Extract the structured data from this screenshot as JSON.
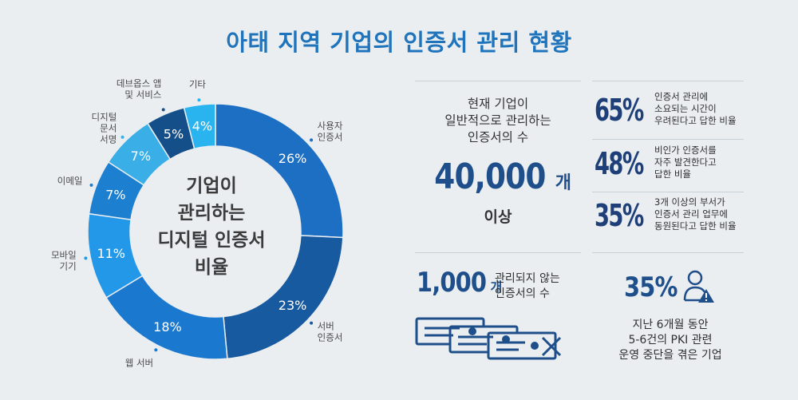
{
  "title": "아태 지역 기업의 인증서 관리 현황",
  "chart_data": {
    "type": "pie",
    "categories": [
      "사용자 인증서",
      "서버 인증서",
      "웹 서버",
      "모바일 기기",
      "이메일",
      "디지털 문서 서명",
      "데브옵스 앱 및 서비스",
      "기타"
    ],
    "values": [
      26,
      23,
      18,
      11,
      7,
      7,
      5,
      4
    ],
    "labels": [
      "26%",
      "23%",
      "18%",
      "11%",
      "7%",
      "7%",
      "5%",
      "4%"
    ],
    "title_lines": [
      "기업이",
      "관리하는",
      "디지털 인증서",
      "비율"
    ]
  },
  "donut_colors": [
    "#1d6fc4",
    "#175aa0",
    "#1b78cf",
    "#2498e8",
    "#1d7fcf",
    "#3aaee6",
    "#154f8a",
    "#29b4f0"
  ],
  "ext_labels": {
    "user": [
      "사용자",
      "인증서"
    ],
    "server": [
      "서버",
      "인증서"
    ],
    "web": [
      "웹 서버"
    ],
    "mobile": [
      "모바일",
      "기기"
    ],
    "email": [
      "이메일"
    ],
    "docsign": [
      "디지털",
      "문서",
      "서명"
    ],
    "devops": [
      "데브옵스 앱",
      "및 서비스"
    ],
    "other": [
      "기타"
    ]
  },
  "stats": {
    "cert_desc": [
      "현재 기업이",
      "일반적으로 관리하는",
      "인증서의 수"
    ],
    "cert_num": "40,000",
    "cert_unit": "개",
    "cert_suffix": "이상",
    "stat1_pct": "65%",
    "stat1_text": [
      "인증서 관리에",
      "소요되는 시간이",
      "우려된다고 답한 비율"
    ],
    "stat2_pct": "48%",
    "stat2_text": [
      "비인가 인증서를",
      "자주 발견한다고",
      "답한 비율"
    ],
    "stat3_pct": "35%",
    "stat3_text": [
      "3개 이상의 부서가",
      "인증서 관리 업무에",
      "동원된다고 답한 비율"
    ],
    "unmanaged_num": "1,000",
    "unmanaged_unit": "개",
    "unmanaged_text": [
      "관리되지 않는",
      "인증서의 수"
    ],
    "pki_pct": "35%",
    "pki_text": [
      "지난 6개월 동안",
      "5-6건의 PKI 관련",
      "운영 중단을 겪은 기업"
    ]
  },
  "icons": {
    "certificates": "certificate-stack-icon",
    "user_alert": "user-warning-icon"
  }
}
